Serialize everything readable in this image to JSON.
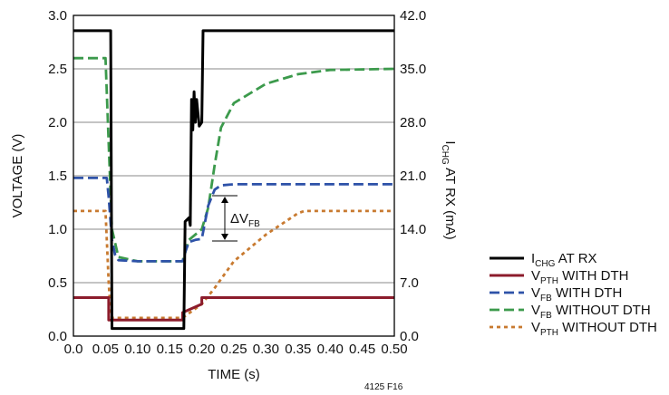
{
  "chart_data": {
    "type": "line",
    "xlabel": "TIME (s)",
    "ylabel": "VOLTAGE (V)",
    "ylabel_right": {
      "main": "I",
      "sub": "CHG",
      "rest": " AT RX (mA)"
    },
    "xlim": [
      0,
      0.5
    ],
    "ylim": [
      0,
      3.0
    ],
    "ylim_right": [
      0,
      42.0
    ],
    "xticks": [
      "0.0",
      "0.05",
      "0.10",
      "0.15",
      "0.20",
      "0.25",
      "0.30",
      "0.35",
      "0.40",
      "0.45",
      "0.50"
    ],
    "yticks": [
      "0.0",
      "0.5",
      "1.0",
      "1.5",
      "2.0",
      "2.5",
      "3.0"
    ],
    "yticks_right": [
      "0.0",
      "7.0",
      "14.0",
      "21.0",
      "28.0",
      "35.0",
      "42.0"
    ],
    "grid": "horizontal",
    "legend_position": "lower-right, outside plot",
    "annotation": {
      "main": "ΔV",
      "sub": "FB"
    },
    "note": "4125 F16",
    "series": [
      {
        "name": "I_CHG AT RX",
        "label": {
          "main": "I",
          "sub": "CHG",
          "rest": " AT RX"
        },
        "color": "#000000",
        "style": "solid",
        "axis": "right",
        "x": [
          0.0,
          0.058,
          0.06,
          0.172,
          0.174,
          0.18,
          0.182,
          0.184,
          0.186,
          0.188,
          0.19,
          0.192,
          0.196,
          0.2,
          0.202,
          0.5
        ],
        "y": [
          40.0,
          40.0,
          1.0,
          1.0,
          15.0,
          15.5,
          14.5,
          31.0,
          27.0,
          32.0,
          28.0,
          31.0,
          27.5,
          28.0,
          40.0,
          40.0
        ]
      },
      {
        "name": "V_PTH WITH DTH",
        "label": {
          "main": "V",
          "sub": "PTH",
          "rest": " WITH DTH"
        },
        "color": "#8c1c2c",
        "style": "solid",
        "axis": "left",
        "x": [
          0.0,
          0.055,
          0.055,
          0.17,
          0.17,
          0.2,
          0.2,
          0.5
        ],
        "y": [
          0.36,
          0.36,
          0.15,
          0.15,
          0.22,
          0.3,
          0.36,
          0.36
        ]
      },
      {
        "name": "V_FB WITH DTH",
        "label": {
          "main": "V",
          "sub": "FB",
          "rest": " WITH DTH"
        },
        "color": "#2e52a8",
        "style": "dashed",
        "axis": "left",
        "x": [
          0.0,
          0.052,
          0.055,
          0.06,
          0.065,
          0.07,
          0.1,
          0.17,
          0.175,
          0.18,
          0.19,
          0.2,
          0.21,
          0.22,
          0.23,
          0.25,
          0.5
        ],
        "y": [
          1.48,
          1.48,
          1.3,
          0.9,
          0.76,
          0.71,
          0.7,
          0.7,
          0.8,
          0.88,
          0.9,
          0.91,
          1.22,
          1.37,
          1.41,
          1.42,
          1.42
        ]
      },
      {
        "name": "V_FB WITHOUT DTH",
        "label": {
          "main": "V",
          "sub": "FB",
          "rest": " WITHOUT DTH"
        },
        "color": "#3c9a4c",
        "style": "dashed",
        "axis": "left",
        "x": [
          0.0,
          0.04,
          0.045,
          0.05,
          0.055,
          0.06,
          0.07,
          0.1,
          0.17,
          0.18,
          0.2,
          0.21,
          0.22,
          0.23,
          0.25,
          0.3,
          0.35,
          0.4,
          0.5
        ],
        "y": [
          2.6,
          2.6,
          2.6,
          2.6,
          1.8,
          1.0,
          0.74,
          0.7,
          0.7,
          0.9,
          1.0,
          1.2,
          1.6,
          1.95,
          2.18,
          2.36,
          2.45,
          2.49,
          2.5
        ]
      },
      {
        "name": "V_PTH WITHOUT DTH",
        "label": {
          "main": "V",
          "sub": "PTH",
          "rest": " WITHOUT DTH"
        },
        "color": "#c87a30",
        "style": "dotted",
        "axis": "left",
        "x": [
          0.0,
          0.05,
          0.055,
          0.058,
          0.06,
          0.17,
          0.2,
          0.22,
          0.25,
          0.3,
          0.35,
          0.36,
          0.5
        ],
        "y": [
          1.17,
          1.17,
          0.5,
          0.2,
          0.17,
          0.17,
          0.3,
          0.45,
          0.7,
          0.95,
          1.15,
          1.17,
          1.17
        ]
      }
    ]
  }
}
